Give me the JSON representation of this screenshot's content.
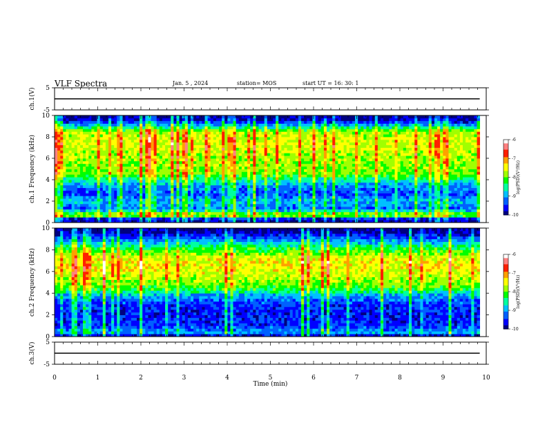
{
  "header": {
    "title": "VLF Spectra",
    "date": "Jan. 5 , 2024",
    "station": "station= MOS",
    "start": "start UT = 16: 30: 1"
  },
  "colorbar": {
    "label": "log(PSD)(V²/Hz)",
    "ticks": [
      "-6",
      "-7",
      "-8",
      "-9",
      "-10"
    ],
    "range": [
      -10,
      -6
    ],
    "colors": [
      "#000080",
      "#0000ff",
      "#0060ff",
      "#00c0ff",
      "#00ffa0",
      "#00ff00",
      "#a0ff00",
      "#ffff00",
      "#ffa000",
      "#ff2000",
      "#ff8080",
      "#ffffff"
    ]
  },
  "chart_data": [
    {
      "type": "line",
      "title": "",
      "ylabel": "ch.1(V)",
      "xlabel": "",
      "xlim": [
        0,
        10
      ],
      "ylim": [
        -5,
        5
      ],
      "yticks": [
        "5",
        "-5"
      ],
      "series": [
        {
          "x": [
            0,
            9.85
          ],
          "y": [
            0,
            0
          ]
        }
      ]
    },
    {
      "type": "heatmap",
      "ylabel": "ch.1 Frequency (kHz)",
      "xlim": [
        0,
        10
      ],
      "ylim": [
        0,
        10
      ],
      "yticks": [
        "0",
        "2",
        "4",
        "6",
        "8",
        "10"
      ],
      "x_extent": [
        0,
        9.85
      ],
      "profile": [
        {
          "f": 0.0,
          "v": -10
        },
        {
          "f": 0.4,
          "v": -9.6
        },
        {
          "f": 0.7,
          "v": -7.6
        },
        {
          "f": 1.3,
          "v": -9.3
        },
        {
          "f": 2.0,
          "v": -8.9
        },
        {
          "f": 2.6,
          "v": -9.4
        },
        {
          "f": 3.5,
          "v": -9.1
        },
        {
          "f": 4.5,
          "v": -8.0
        },
        {
          "f": 6.0,
          "v": -7.8
        },
        {
          "f": 7.5,
          "v": -7.6
        },
        {
          "f": 8.5,
          "v": -7.8
        },
        {
          "f": 9.0,
          "v": -8.8
        },
        {
          "f": 9.6,
          "v": -9.9
        },
        {
          "f": 10.0,
          "v": -10
        }
      ]
    },
    {
      "type": "heatmap",
      "ylabel": "ch.2 Frequency (kHz)",
      "xlim": [
        0,
        10
      ],
      "ylim": [
        0,
        10
      ],
      "yticks": [
        "0",
        "2",
        "4",
        "6",
        "8",
        "10"
      ],
      "x_extent": [
        0,
        9.85
      ],
      "profile": [
        {
          "f": 0.0,
          "v": -10
        },
        {
          "f": 0.4,
          "v": -9.0
        },
        {
          "f": 1.0,
          "v": -9.5
        },
        {
          "f": 2.0,
          "v": -9.6
        },
        {
          "f": 3.0,
          "v": -9.5
        },
        {
          "f": 3.8,
          "v": -9.0
        },
        {
          "f": 4.5,
          "v": -8.1
        },
        {
          "f": 5.5,
          "v": -7.7
        },
        {
          "f": 6.5,
          "v": -7.4
        },
        {
          "f": 7.3,
          "v": -7.6
        },
        {
          "f": 8.2,
          "v": -8.3
        },
        {
          "f": 9.0,
          "v": -9.2
        },
        {
          "f": 9.6,
          "v": -9.9
        },
        {
          "f": 10.0,
          "v": -10
        }
      ]
    },
    {
      "type": "line",
      "ylabel": "ch.3(V)",
      "xlabel": "Time (min)",
      "xlim": [
        0,
        10
      ],
      "ylim": [
        -5,
        5
      ],
      "yticks": [
        "5",
        "-5"
      ],
      "xticks": [
        "0",
        "1",
        "2",
        "3",
        "4",
        "5",
        "6",
        "7",
        "8",
        "9",
        "10"
      ],
      "series": [
        {
          "x": [
            0,
            9.85
          ],
          "y": [
            0,
            0
          ]
        }
      ]
    }
  ]
}
